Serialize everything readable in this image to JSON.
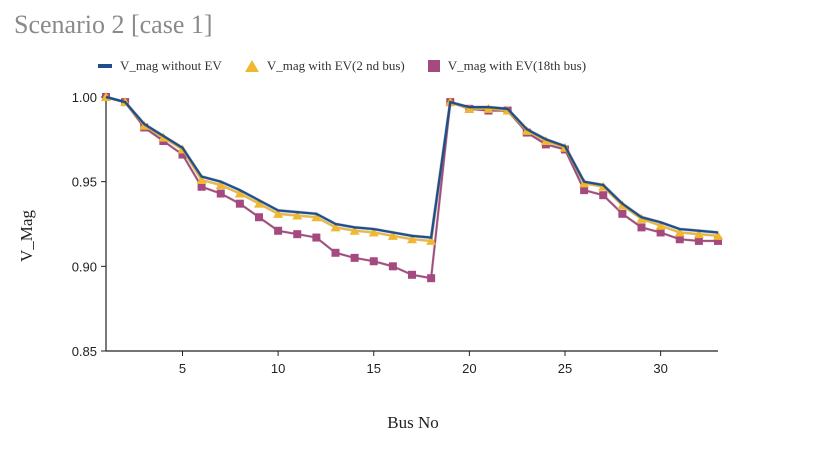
{
  "title": "Scenario 2 [case 1]",
  "chart_data": {
    "type": "line",
    "title": "Scenario 2 [case 1]",
    "xlabel": "Bus No",
    "ylabel": "V_Mag",
    "xlim": [
      1,
      33
    ],
    "ylim": [
      0.85,
      1.0
    ],
    "x_ticks": [
      5,
      10,
      15,
      20,
      25,
      30
    ],
    "y_ticks": [
      0.85,
      0.9,
      0.95,
      1.0
    ],
    "y_tick_labels": [
      "0.85",
      "0.90",
      "0.95",
      "1.00"
    ],
    "grid": false,
    "legend_position": "top",
    "x": [
      1,
      2,
      3,
      4,
      5,
      6,
      7,
      8,
      9,
      10,
      11,
      12,
      13,
      14,
      15,
      16,
      17,
      18,
      19,
      20,
      21,
      22,
      23,
      24,
      25,
      26,
      27,
      28,
      29,
      30,
      31,
      32,
      33
    ],
    "series": [
      {
        "name": "V_mag without EV",
        "color": "#1f4e8c",
        "marker": "line",
        "values": [
          1.0,
          0.997,
          0.984,
          0.977,
          0.97,
          0.953,
          0.95,
          0.945,
          0.939,
          0.933,
          0.932,
          0.931,
          0.925,
          0.923,
          0.922,
          0.92,
          0.918,
          0.917,
          0.997,
          0.994,
          0.994,
          0.993,
          0.981,
          0.975,
          0.971,
          0.95,
          0.948,
          0.937,
          0.929,
          0.926,
          0.922,
          0.921,
          0.92
        ]
      },
      {
        "name": "V_mag with EV(2 nd bus)",
        "color": "#f0b830",
        "marker": "triangle",
        "values": [
          1.0,
          0.997,
          0.983,
          0.976,
          0.969,
          0.951,
          0.948,
          0.943,
          0.937,
          0.931,
          0.93,
          0.929,
          0.923,
          0.921,
          0.92,
          0.918,
          0.916,
          0.915,
          0.997,
          0.993,
          0.993,
          0.992,
          0.98,
          0.974,
          0.97,
          0.949,
          0.947,
          0.936,
          0.928,
          0.924,
          0.92,
          0.919,
          0.918
        ]
      },
      {
        "name": "V_mag with EV(18th bus)",
        "color": "#a44a7e",
        "marker": "square",
        "values": [
          1.0,
          0.997,
          0.982,
          0.974,
          0.966,
          0.947,
          0.943,
          0.937,
          0.929,
          0.921,
          0.919,
          0.917,
          0.908,
          0.905,
          0.903,
          0.9,
          0.895,
          0.893,
          0.997,
          0.993,
          0.992,
          0.992,
          0.979,
          0.972,
          0.969,
          0.945,
          0.942,
          0.931,
          0.923,
          0.92,
          0.916,
          0.915,
          0.915
        ]
      }
    ]
  }
}
